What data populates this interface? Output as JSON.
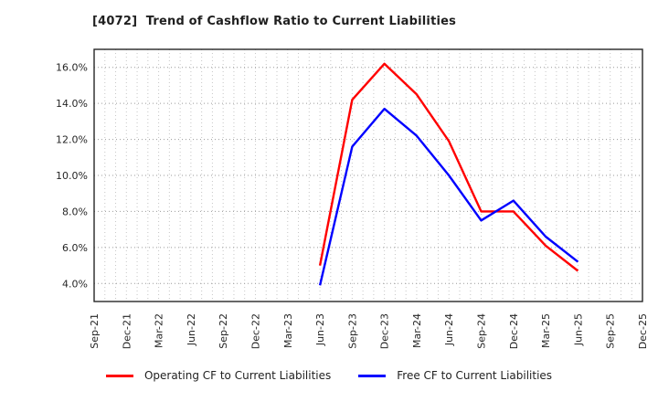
{
  "window": {
    "title": "[4072]  Trend of Cashflow Ratio to Current Liabilities"
  },
  "chart_data": {
    "type": "line",
    "title": "[4072]  Trend of Cashflow Ratio to Current Liabilities",
    "categories": [
      "Sep-21",
      "Dec-21",
      "Mar-22",
      "Jun-22",
      "Sep-22",
      "Dec-22",
      "Mar-23",
      "Jun-23",
      "Sep-23",
      "Dec-23",
      "Mar-24",
      "Jun-24",
      "Sep-24",
      "Dec-24",
      "Mar-25",
      "Jun-25",
      "Sep-25",
      "Dec-25"
    ],
    "series": [
      {
        "name": "Operating CF to Current Liabilities",
        "color": "#ff0000",
        "values": [
          null,
          null,
          null,
          null,
          null,
          null,
          null,
          5.0,
          14.2,
          16.2,
          14.5,
          11.9,
          8.0,
          8.0,
          6.1,
          4.7,
          null,
          null
        ]
      },
      {
        "name": "Free CF to Current Liabilities",
        "color": "#0000ff",
        "values": [
          null,
          null,
          null,
          null,
          null,
          null,
          null,
          3.9,
          11.6,
          13.7,
          12.2,
          10.0,
          7.5,
          8.6,
          6.6,
          5.2,
          null,
          null
        ]
      }
    ],
    "xlabel": "",
    "ylabel": "",
    "ylim": [
      3.0,
      17.0
    ],
    "yticks": [
      4.0,
      6.0,
      8.0,
      10.0,
      12.0,
      14.0,
      16.0
    ],
    "ytick_suffix": "%",
    "grid": "on",
    "minor_x_divisions": 3,
    "legend_position": "bottom-center"
  },
  "style": {
    "background": "#ffffff",
    "axis_color": "#262626",
    "text_color": "#262626",
    "grid_minor_color": "#c6c6c6",
    "grid_major_color": "#9a9a9a",
    "series_red": "#ff0000",
    "series_blue": "#0000ff"
  }
}
